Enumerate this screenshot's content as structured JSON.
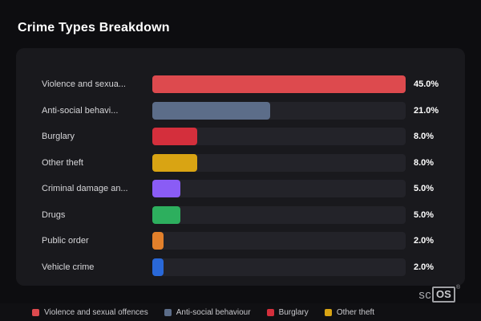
{
  "chart_data": {
    "type": "bar",
    "orientation": "horizontal",
    "title": "Crime Types Breakdown",
    "categories": [
      "Violence and sexual offences",
      "Anti-social behaviour",
      "Burglary",
      "Other theft",
      "Criminal damage and arson",
      "Drugs",
      "Public order",
      "Vehicle crime"
    ],
    "display_labels": [
      "Violence and sexua...",
      "Anti-social behavi...",
      "Burglary",
      "Other theft",
      "Criminal damage an...",
      "Drugs",
      "Public order",
      "Vehicle crime"
    ],
    "values": [
      45.0,
      21.0,
      8.0,
      8.0,
      5.0,
      5.0,
      2.0,
      2.0
    ],
    "value_labels": [
      "45.0%",
      "21.0%",
      "8.0%",
      "8.0%",
      "5.0%",
      "5.0%",
      "2.0%",
      "2.0%"
    ],
    "colors": [
      "#dd4a4e",
      "#5c6d89",
      "#d42f3c",
      "#d9a413",
      "#8a5cf5",
      "#2daf5e",
      "#e2802b",
      "#2968d8"
    ],
    "max_value": 45.0,
    "xlabel": "",
    "ylabel": "",
    "grid": false,
    "legend_position": "bottom"
  },
  "legend": {
    "items": [
      {
        "label": "Violence and sexual offences",
        "color": "#dd4a4e"
      },
      {
        "label": "Anti-social behaviour",
        "color": "#5c6d89"
      },
      {
        "label": "Burglary",
        "color": "#d42f3c"
      },
      {
        "label": "Other theft",
        "color": "#d9a413"
      }
    ]
  },
  "branding": {
    "prefix": "sc",
    "box_label": "OS",
    "reg": "®"
  }
}
